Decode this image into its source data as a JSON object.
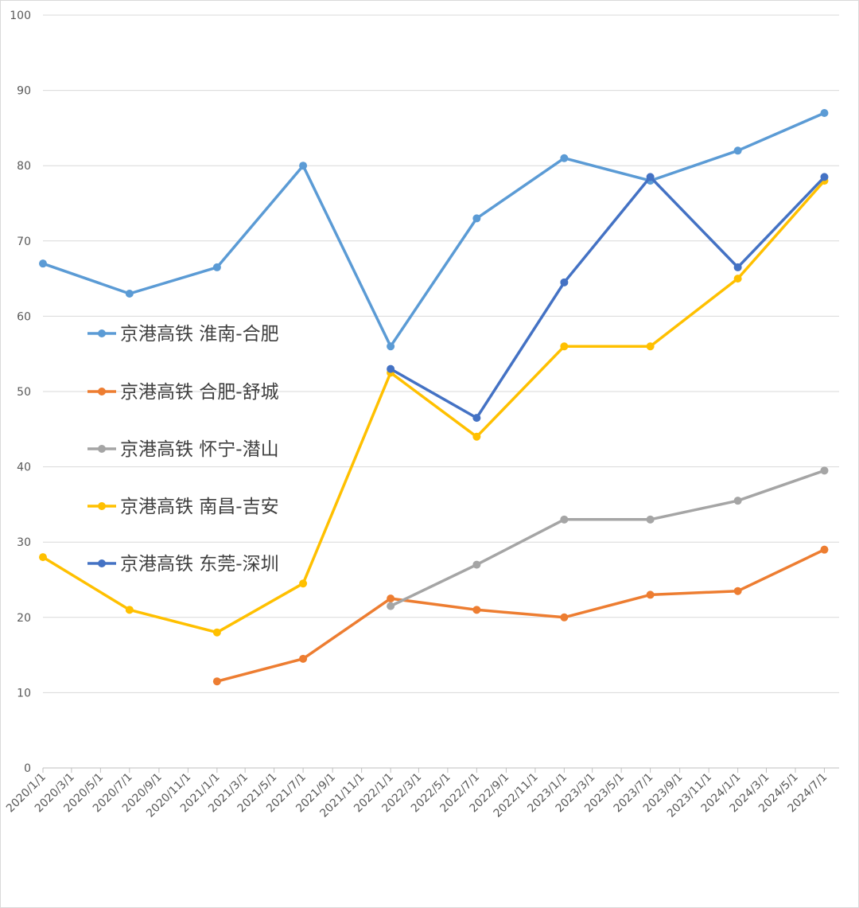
{
  "chart_data": {
    "type": "line",
    "title": "",
    "xlabel": "",
    "ylabel": "",
    "ylim": [
      0,
      100
    ],
    "yticks": [
      0,
      10,
      20,
      30,
      40,
      50,
      60,
      70,
      80,
      90,
      100
    ],
    "xlim": [
      "2020/1/1",
      "2024/8/1"
    ],
    "xticks": [
      "2020/1/1",
      "2020/3/1",
      "2020/5/1",
      "2020/7/1",
      "2020/9/1",
      "2020/11/1",
      "2021/1/1",
      "2021/3/1",
      "2021/5/1",
      "2021/7/1",
      "2021/9/1",
      "2021/11/1",
      "2022/1/1",
      "2022/3/1",
      "2022/5/1",
      "2022/7/1",
      "2022/9/1",
      "2022/11/1",
      "2023/1/1",
      "2023/3/1",
      "2023/5/1",
      "2023/7/1",
      "2023/9/1",
      "2023/11/1",
      "2024/1/1",
      "2024/3/1",
      "2024/5/1",
      "2024/7/1"
    ],
    "grid": true,
    "legend_position": "left-middle",
    "series": [
      {
        "name": "京港高铁 淮南-合肥",
        "color": "#5B9BD5",
        "points": [
          {
            "x": "2020/1/1",
            "y": 67
          },
          {
            "x": "2020/7/1",
            "y": 63
          },
          {
            "x": "2021/1/1",
            "y": 66.5
          },
          {
            "x": "2021/7/1",
            "y": 80
          },
          {
            "x": "2022/1/1",
            "y": 56
          },
          {
            "x": "2022/7/1",
            "y": 73
          },
          {
            "x": "2023/1/1",
            "y": 81
          },
          {
            "x": "2023/7/1",
            "y": 78
          },
          {
            "x": "2024/1/1",
            "y": 82
          },
          {
            "x": "2024/7/1",
            "y": 87
          }
        ]
      },
      {
        "name": "京港高铁 合肥-舒城",
        "color": "#ED7D31",
        "points": [
          {
            "x": "2021/1/1",
            "y": 11.5
          },
          {
            "x": "2021/7/1",
            "y": 14.5
          },
          {
            "x": "2022/1/1",
            "y": 22.5
          },
          {
            "x": "2022/7/1",
            "y": 21
          },
          {
            "x": "2023/1/1",
            "y": 20
          },
          {
            "x": "2023/7/1",
            "y": 23
          },
          {
            "x": "2024/1/1",
            "y": 23.5
          },
          {
            "x": "2024/7/1",
            "y": 29
          }
        ]
      },
      {
        "name": "京港高铁 怀宁-潜山",
        "color": "#A5A5A5",
        "points": [
          {
            "x": "2022/1/1",
            "y": 21.5
          },
          {
            "x": "2022/7/1",
            "y": 27
          },
          {
            "x": "2023/1/1",
            "y": 33
          },
          {
            "x": "2023/7/1",
            "y": 33
          },
          {
            "x": "2024/1/1",
            "y": 35.5
          },
          {
            "x": "2024/7/1",
            "y": 39.5
          }
        ]
      },
      {
        "name": "京港高铁 南昌-吉安",
        "color": "#FFC000",
        "points": [
          {
            "x": "2020/1/1",
            "y": 28
          },
          {
            "x": "2020/7/1",
            "y": 21
          },
          {
            "x": "2021/1/1",
            "y": 18
          },
          {
            "x": "2021/7/1",
            "y": 24.5
          },
          {
            "x": "2022/1/1",
            "y": 52.5
          },
          {
            "x": "2022/7/1",
            "y": 44
          },
          {
            "x": "2023/1/1",
            "y": 56
          },
          {
            "x": "2023/7/1",
            "y": 56
          },
          {
            "x": "2024/1/1",
            "y": 65
          },
          {
            "x": "2024/7/1",
            "y": 78
          }
        ]
      },
      {
        "name": "京港高铁 东莞-深圳",
        "color": "#4472C4",
        "points": [
          {
            "x": "2022/1/1",
            "y": 53
          },
          {
            "x": "2022/7/1",
            "y": 46.5
          },
          {
            "x": "2023/1/1",
            "y": 64.5
          },
          {
            "x": "2023/7/1",
            "y": 78.5
          },
          {
            "x": "2024/1/1",
            "y": 66.5
          },
          {
            "x": "2024/7/1",
            "y": 78.5
          }
        ]
      }
    ]
  }
}
